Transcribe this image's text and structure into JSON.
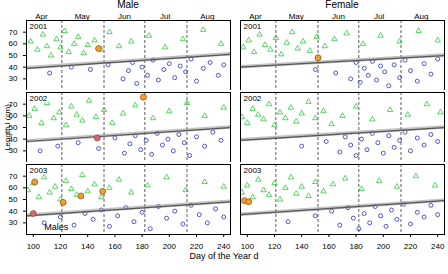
{
  "chart_data": {
    "type": "scatter",
    "x_label": "Day of the Year d",
    "y_label": "Length l (cm)",
    "xlim": [
      95,
      245
    ],
    "xticks": [
      100,
      120,
      140,
      160,
      180,
      200,
      220,
      240
    ],
    "ylim": [
      20,
      80
    ],
    "yticks": [
      30,
      40,
      50,
      60,
      70
    ],
    "month_ticks": [
      {
        "value": 106,
        "label": "Apr"
      },
      {
        "value": 136,
        "label": "May"
      },
      {
        "value": 167,
        "label": "Jun"
      },
      {
        "value": 197,
        "label": "Jul"
      },
      {
        "value": 228,
        "label": "Aug"
      }
    ],
    "vlines": [
      121,
      152,
      182,
      213
    ],
    "columns": [
      "Male",
      "Female"
    ],
    "rows": [
      "2001",
      "2002",
      "2003"
    ],
    "panels": [
      {
        "column": "Male",
        "row": "2001",
        "series": [
          {
            "color": "#2ecc40",
            "marker": "triangle",
            "x": [
              98,
              103,
              107,
              110,
              113,
              117,
              120,
              123,
              126,
              130,
              133,
              137,
              140,
              145,
              150,
              156,
              163,
              172,
              185,
              197,
              210,
              225,
              238
            ],
            "values": [
              62,
              55,
              68,
              58,
              50,
              64,
              57,
              71,
              53,
              60,
              66,
              52,
              59,
              63,
              55,
              70,
              58,
              62,
              67,
              57,
              64,
              72,
              60
            ]
          },
          {
            "color": "#2233cc",
            "marker": "circle",
            "x": [
              112,
              128,
              142,
              155,
              166,
              170,
              173,
              176,
              180,
              184,
              188,
              192,
              196,
              200,
              204,
              208,
              212,
              216,
              220,
              225,
              230,
              236,
              240
            ],
            "values": [
              35,
              40,
              38,
              42,
              30,
              37,
              44,
              26,
              40,
              33,
              46,
              29,
              38,
              43,
              31,
              41,
              36,
              47,
              28,
              39,
              44,
              33,
              42
            ]
          },
          {
            "type": "line",
            "color": "#555555",
            "x": [
              95,
              245
            ],
            "values": [
              39,
              51
            ],
            "lower": [
              37.5,
              49.5
            ],
            "upper": [
              40.5,
              52.5
            ]
          },
          {
            "color": "#f0a030",
            "marker": "disc",
            "x": [
              148
            ],
            "values": [
              56
            ]
          }
        ]
      },
      {
        "column": "Male",
        "row": "2002",
        "series": [
          {
            "color": "#2ecc40",
            "marker": "triangle",
            "x": [
              97,
              101,
              106,
              110,
              115,
              119,
              124,
              128,
              132,
              136,
              141,
              146,
              152,
              158,
              166,
              175,
              188,
              200,
              213,
              226,
              240
            ],
            "values": [
              60,
              66,
              54,
              71,
              58,
              63,
              52,
              68,
              61,
              56,
              73,
              59,
              65,
              54,
              62,
              69,
              58,
              64,
              71,
              60,
              67
            ]
          },
          {
            "color": "#2233cc",
            "marker": "circle",
            "x": [
              105,
              118,
              133,
              148,
              160,
              167,
              171,
              175,
              179,
              183,
              187,
              191,
              195,
              199,
              203,
              207,
              211,
              215,
              220,
              226,
              232,
              238
            ],
            "values": [
              30,
              34,
              37,
              32,
              41,
              28,
              36,
              43,
              31,
              39,
              27,
              45,
              35,
              40,
              30,
              44,
              37,
              26,
              42,
              34,
              46,
              39
            ]
          },
          {
            "type": "line",
            "color": "#555555",
            "x": [
              95,
              245
            ],
            "values": [
              38,
              50
            ],
            "lower": [
              36.5,
              48.5
            ],
            "upper": [
              39.5,
              51.5
            ]
          },
          {
            "color": "#f0a030",
            "marker": "disc",
            "x": [
              181
            ],
            "values": [
              76
            ]
          },
          {
            "color": "#e0607a",
            "marker": "disc",
            "x": [
              147
            ],
            "values": [
              41
            ]
          }
        ]
      },
      {
        "column": "Male",
        "row": "2003",
        "annotations": [
          {
            "text": "Males",
            "x": 108,
            "y": 26
          }
        ],
        "series": [
          {
            "color": "#2ecc40",
            "marker": "triangle",
            "x": [
              96,
              100,
              104,
              108,
              112,
              116,
              120,
              124,
              128,
              132,
              136,
              140,
              145,
              150,
              156,
              163,
              172,
              184,
              198,
              212,
              226,
              240
            ],
            "values": [
              58,
              64,
              52,
              69,
              56,
              61,
              50,
              66,
              59,
              54,
              71,
              57,
              63,
              52,
              60,
              67,
              56,
              62,
              69,
              58,
              65,
              61
            ]
          },
          {
            "color": "#2233cc",
            "marker": "circle",
            "x": [
              108,
              120,
              130,
              138,
              144,
              150,
              156,
              162,
              168,
              174,
              180,
              186,
              192,
              198,
              204,
              210,
              216,
              222,
              228,
              234,
              240
            ],
            "values": [
              30,
              35,
              28,
              38,
              33,
              41,
              27,
              36,
              43,
              31,
              39,
              25,
              44,
              34,
              40,
              29,
              45,
              37,
              30,
              42,
              35
            ]
          },
          {
            "type": "line",
            "color": "#555555",
            "x": [
              95,
              245
            ],
            "values": [
              36,
              48
            ],
            "lower": [
              34.5,
              46.5
            ],
            "upper": [
              37.5,
              49.5
            ]
          },
          {
            "color": "#f0a030",
            "marker": "disc",
            "x": [
              101,
              122,
              135,
              151
            ],
            "values": [
              65,
              47.5,
              53,
              57
            ]
          },
          {
            "color": "#e0607a",
            "marker": "disc",
            "x": [
              100
            ],
            "values": [
              38
            ]
          }
        ]
      },
      {
        "column": "Female",
        "row": "2001",
        "series": [
          {
            "color": "#2ecc40",
            "marker": "triangle",
            "x": [
              97,
              101,
              105,
              109,
              113,
              117,
              121,
              125,
              129,
              133,
              137,
              141,
              146,
              151,
              157,
              164,
              173,
              185,
              198,
              212,
              226,
              240
            ],
            "values": [
              57,
              63,
              53,
              68,
              59,
              55,
              65,
              51,
              61,
              70,
              56,
              62,
              54,
              66,
              58,
              64,
              69,
              60,
              67,
              62,
              71,
              63
            ]
          },
          {
            "color": "#2233cc",
            "marker": "circle",
            "x": [
              150,
              165,
              176,
              180,
              183,
              186,
              189,
              192,
              195,
              198,
              201,
              204,
              208,
              212,
              216,
              220,
              225,
              230,
              235,
              240
            ],
            "values": [
              38,
              35,
              30,
              44,
              27,
              39,
              33,
              45,
              29,
              41,
              36,
              24,
              42,
              31,
              46,
              37,
              28,
              43,
              34,
              47
            ]
          },
          {
            "type": "line",
            "color": "#555555",
            "x": [
              95,
              245
            ],
            "values": [
              40,
              50
            ],
            "lower": [
              38.5,
              48.5
            ],
            "upper": [
              41.5,
              51.5
            ]
          },
          {
            "color": "#f0a030",
            "marker": "disc",
            "x": [
              152
            ],
            "values": [
              48
            ]
          }
        ]
      },
      {
        "column": "Female",
        "row": "2002",
        "series": [
          {
            "color": "#2ecc40",
            "marker": "triangle",
            "x": [
              96,
              100,
              104,
              108,
              112,
              116,
              120,
              124,
              128,
              132,
              136,
              140,
              145,
              150,
              156,
              162,
              170,
              180,
              192,
              205,
              218,
              232,
              242
            ],
            "values": [
              59,
              54,
              66,
              61,
              57,
              70,
              52,
              63,
              58,
              67,
              55,
              62,
              72,
              58,
              64,
              53,
              60,
              68,
              57,
              65,
              61,
              70,
              63
            ]
          },
          {
            "color": "#2233cc",
            "marker": "circle",
            "x": [
              140,
              158,
              168,
              172,
              176,
              180,
              184,
              188,
              192,
              196,
              200,
              204,
              208,
              212,
              216,
              220,
              225,
              230,
              235,
              240
            ],
            "values": [
              34,
              38,
              29,
              42,
              35,
              26,
              40,
              31,
              45,
              37,
              28,
              43,
              33,
              39,
              46,
              30,
              41,
              35,
              44,
              38
            ]
          },
          {
            "type": "line",
            "color": "#555555",
            "x": [
              95,
              245
            ],
            "values": [
              39,
              50
            ],
            "lower": [
              37.5,
              48.5
            ],
            "upper": [
              40.5,
              51.5
            ]
          }
        ]
      },
      {
        "column": "Female",
        "row": "2003",
        "series": [
          {
            "color": "#2ecc40",
            "marker": "triangle",
            "x": [
              96,
              100,
              104,
              108,
              112,
              116,
              120,
              124,
              128,
              132,
              136,
              140,
              145,
              150,
              156,
              163,
              172,
              184,
              197,
              210,
              224,
              238
            ],
            "values": [
              56,
              62,
              52,
              67,
              58,
              54,
              64,
              50,
              60,
              69,
              55,
              61,
              53,
              65,
              57,
              63,
              68,
              59,
              66,
              61,
              70,
              62
            ]
          },
          {
            "color": "#2233cc",
            "marker": "circle",
            "x": [
              130,
              150,
              162,
              168,
              174,
              178,
              182,
              186,
              190,
              194,
              198,
              202,
              206,
              210,
              215,
              220,
              225,
              230,
              235,
              240
            ],
            "values": [
              31,
              36,
              40,
              28,
              43,
              34,
              25,
              38,
              30,
              44,
              36,
              27,
              41,
              33,
              46,
              29,
              39,
              35,
              45,
              37
            ]
          },
          {
            "type": "line",
            "color": "#555555",
            "x": [
              95,
              245
            ],
            "values": [
              37,
              49
            ],
            "lower": [
              35.5,
              47.5
            ],
            "upper": [
              38.5,
              50.5
            ]
          },
          {
            "color": "#f0a030",
            "marker": "disc",
            "x": [
              98,
              101
            ],
            "values": [
              49,
              48
            ]
          }
        ]
      }
    ]
  }
}
